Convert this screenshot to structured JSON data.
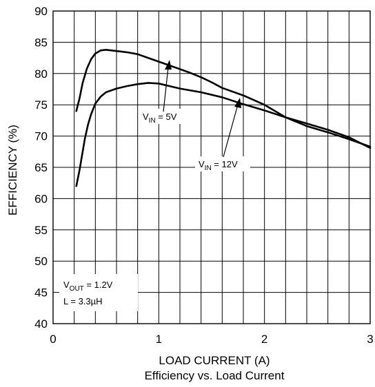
{
  "chart_data": {
    "type": "line",
    "title": "Efficiency vs. Load Current",
    "xlabel": "LOAD CURRENT (A)",
    "ylabel": "EFFICIENCY (%)",
    "xlim": [
      0,
      3
    ],
    "ylim": [
      40,
      90
    ],
    "grid": true,
    "x_ticks": [
      "0",
      "1",
      "2",
      "3"
    ],
    "y_ticks": [
      "40",
      "45",
      "50",
      "55",
      "60",
      "65",
      "70",
      "75",
      "80",
      "85",
      "90"
    ],
    "series": [
      {
        "label_main": "V",
        "label_sub": "IN",
        "label_tail": " = 5V",
        "x": [
          0.22,
          0.25,
          0.28,
          0.32,
          0.36,
          0.4,
          0.45,
          0.5,
          0.55,
          0.6,
          0.7,
          0.8,
          0.9,
          1.0,
          1.1,
          1.2,
          1.3,
          1.4,
          1.5,
          1.6,
          1.8,
          2.0,
          2.2,
          2.4,
          2.6,
          2.8,
          3.0
        ],
        "y": [
          74.0,
          76.0,
          78.5,
          80.8,
          82.3,
          83.2,
          83.7,
          83.8,
          83.7,
          83.6,
          83.4,
          83.1,
          82.5,
          81.9,
          81.3,
          80.7,
          80.1,
          79.4,
          78.6,
          77.7,
          76.5,
          75.0,
          73.0,
          71.6,
          70.6,
          69.5,
          68.3
        ]
      },
      {
        "label_main": "V",
        "label_sub": "IN",
        "label_tail": " = 12V",
        "x": [
          0.22,
          0.25,
          0.28,
          0.3,
          0.33,
          0.36,
          0.4,
          0.45,
          0.5,
          0.55,
          0.6,
          0.7,
          0.8,
          0.9,
          1.0,
          1.1,
          1.2,
          1.4,
          1.6,
          1.8,
          2.0,
          2.2,
          2.4,
          2.6,
          2.8,
          3.0
        ],
        "y": [
          62.0,
          64.5,
          67.5,
          69.5,
          71.8,
          73.5,
          75.2,
          76.3,
          77.0,
          77.3,
          77.6,
          78.0,
          78.3,
          78.5,
          78.4,
          78.0,
          77.6,
          77.0,
          76.2,
          75.1,
          74.1,
          73.0,
          72.0,
          71.0,
          69.8,
          68.1
        ]
      }
    ],
    "annotations": [
      {
        "main": "V",
        "sub": "OUT",
        "tail": " = 1.2V"
      },
      {
        "main": "L = 3.3",
        "mu": "µ",
        "tail": "H"
      }
    ]
  }
}
